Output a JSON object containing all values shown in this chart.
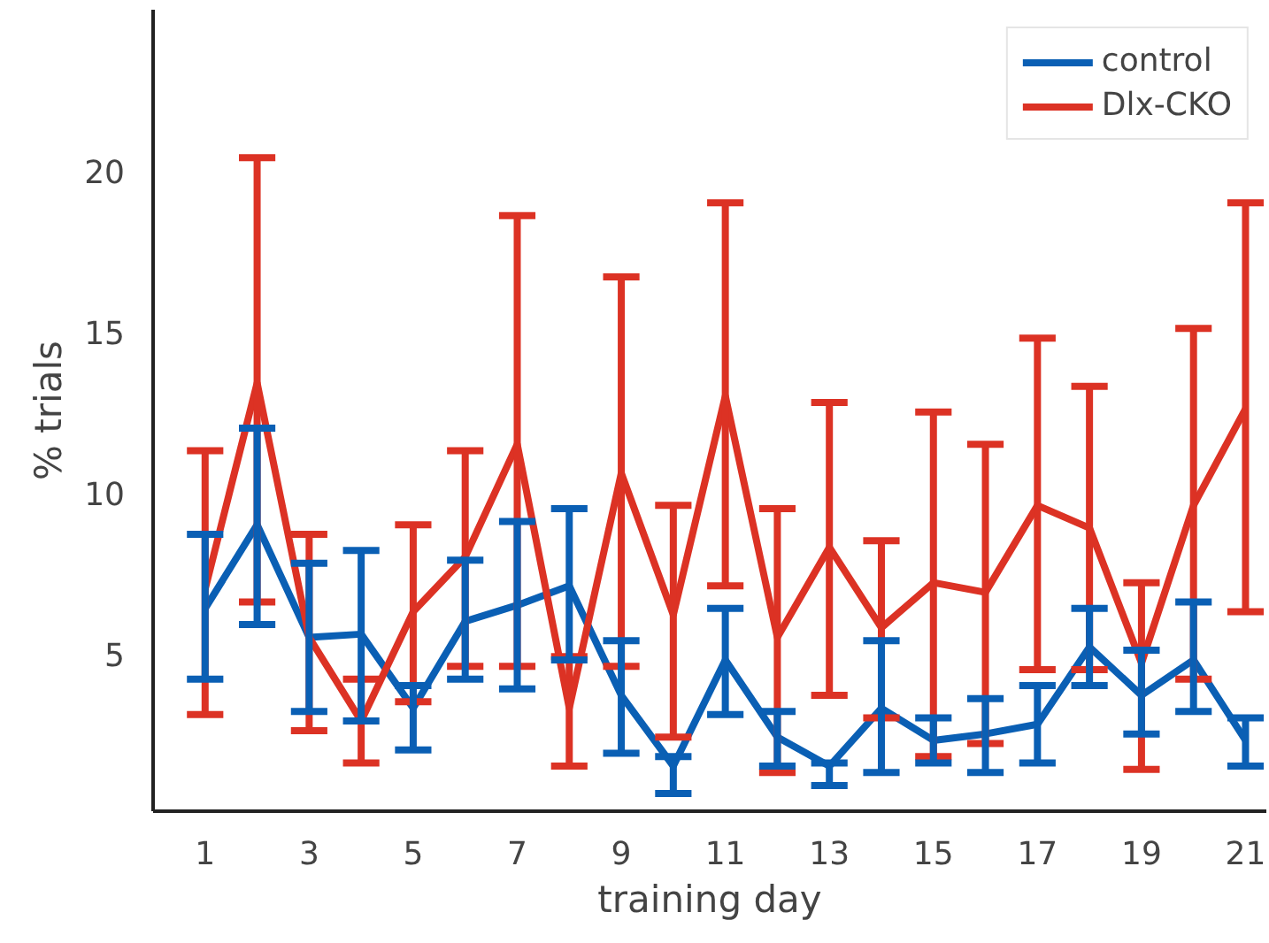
{
  "chart_data": {
    "type": "line",
    "xlabel": "training day",
    "ylabel": "% trials",
    "x": [
      1,
      2,
      3,
      4,
      5,
      6,
      7,
      8,
      9,
      10,
      11,
      12,
      13,
      14,
      15,
      16,
      17,
      18,
      19,
      20,
      21
    ],
    "xlim": [
      0,
      21.4
    ],
    "ylim": [
      0.1,
      25
    ],
    "xticks": [
      1,
      3,
      5,
      7,
      9,
      11,
      13,
      15,
      17,
      19,
      21
    ],
    "yticks": [
      5,
      10,
      15,
      20
    ],
    "grid": false,
    "legend": "top right",
    "line_style": "solid",
    "series": [
      {
        "name": "control",
        "color": "#0a5fb4",
        "values": [
          6.4,
          9.0,
          5.5,
          5.6,
          3.3,
          6.0,
          6.5,
          7.1,
          3.7,
          1.5,
          4.8,
          2.4,
          1.5,
          3.3,
          2.3,
          2.5,
          2.8,
          5.2,
          3.7,
          4.8,
          2.3
        ],
        "errors": [
          [
            4.2,
            8.7
          ],
          [
            5.9,
            12.0
          ],
          [
            3.2,
            7.8
          ],
          [
            2.9,
            8.2
          ],
          [
            2.0,
            4.0
          ],
          [
            4.2,
            7.9
          ],
          [
            3.9,
            9.1
          ],
          [
            4.8,
            9.5
          ],
          [
            1.9,
            5.4
          ],
          [
            0.65,
            1.8
          ],
          [
            3.1,
            6.4
          ],
          [
            1.5,
            3.2
          ],
          [
            0.9,
            1.6
          ],
          [
            1.3,
            5.4
          ],
          [
            1.6,
            3.0
          ],
          [
            1.3,
            3.6
          ],
          [
            1.6,
            4.0
          ],
          [
            4.0,
            6.4
          ],
          [
            2.5,
            5.1
          ],
          [
            3.2,
            6.6
          ],
          [
            1.5,
            3.0
          ]
        ]
      },
      {
        "name": "Dlx-CKO",
        "color": "#dc3224",
        "values": [
          7.0,
          13.4,
          5.5,
          2.9,
          6.3,
          8.0,
          11.5,
          3.3,
          10.6,
          6.2,
          13.0,
          5.5,
          8.3,
          5.8,
          7.2,
          6.9,
          9.6,
          8.9,
          4.7,
          9.6,
          12.6
        ],
        "errors": [
          [
            3.1,
            11.3
          ],
          [
            6.6,
            20.4
          ],
          [
            2.6,
            8.7
          ],
          [
            1.6,
            4.2
          ],
          [
            3.5,
            9.0
          ],
          [
            4.6,
            11.3
          ],
          [
            4.6,
            18.6
          ],
          [
            1.5,
            4.9
          ],
          [
            4.6,
            16.7
          ],
          [
            2.4,
            9.6
          ],
          [
            7.1,
            19.0
          ],
          [
            1.3,
            9.5
          ],
          [
            3.7,
            12.8
          ],
          [
            3.0,
            8.5
          ],
          [
            1.8,
            12.5
          ],
          [
            2.2,
            11.5
          ],
          [
            4.5,
            14.8
          ],
          [
            4.5,
            13.3
          ],
          [
            1.4,
            7.2
          ],
          [
            4.2,
            15.1
          ],
          [
            6.3,
            19.0
          ]
        ]
      }
    ]
  }
}
